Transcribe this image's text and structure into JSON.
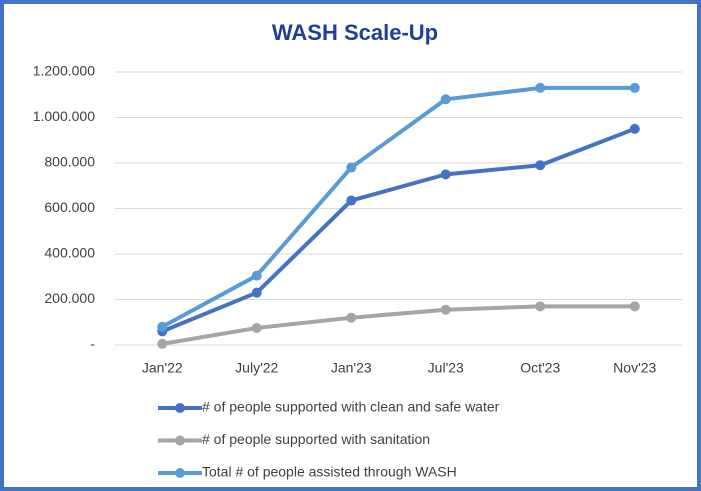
{
  "chart_data": {
    "type": "line",
    "title": "WASH Scale-Up",
    "categories": [
      "Jan'22",
      "July'22",
      "Jan'23",
      "Jul'23",
      "Oct'23",
      "Nov'23"
    ],
    "series": [
      {
        "name": "# of people supported with clean and safe water",
        "color": "#4472c4",
        "values": [
          60000,
          230000,
          635000,
          750000,
          790000,
          950000
        ]
      },
      {
        "name": "# of people supported with sanitation",
        "color": "#a5a5a5",
        "values": [
          5000,
          75000,
          120000,
          155000,
          170000,
          170000
        ]
      },
      {
        "name": "Total # of people assisted through WASH",
        "color": "#5b9bd5",
        "values": [
          80000,
          305000,
          780000,
          1080000,
          1130000,
          1130000
        ]
      }
    ],
    "ylim": [
      0,
      1200000
    ],
    "yticks": [
      {
        "value": 0,
        "label": "-"
      },
      {
        "value": 200000,
        "label": "200.000"
      },
      {
        "value": 400000,
        "label": "400.000"
      },
      {
        "value": 600000,
        "label": "600.000"
      },
      {
        "value": 800000,
        "label": "800.000"
      },
      {
        "value": 1000000,
        "label": "1.000.000"
      },
      {
        "value": 1200000,
        "label": "1.200.000"
      }
    ],
    "grid": true,
    "legend": "bottom"
  }
}
